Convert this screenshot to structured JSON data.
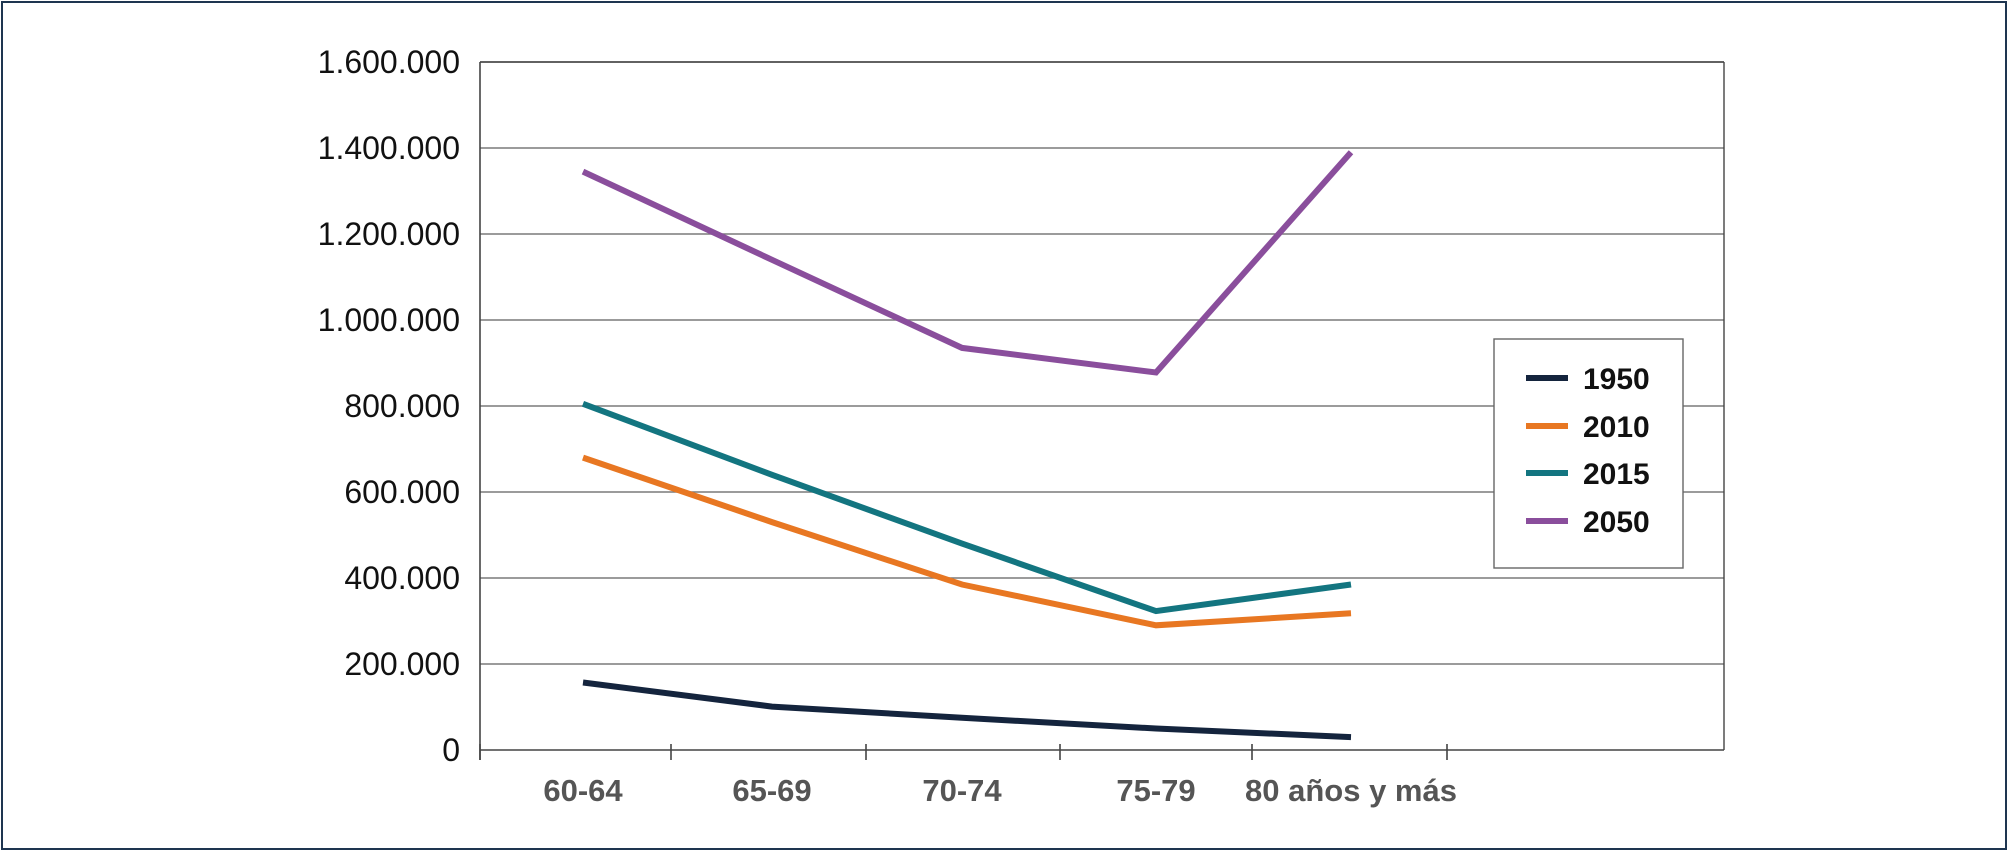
{
  "chart_data": {
    "type": "line",
    "title": "",
    "xlabel": "",
    "ylabel": "",
    "categories": [
      "60-64",
      "65-69",
      "70-74",
      "75-79",
      "80 años y más"
    ],
    "ylim": [
      0,
      1600000
    ],
    "y_ticks": [
      0,
      200000,
      400000,
      600000,
      800000,
      1000000,
      1200000,
      1400000,
      1600000
    ],
    "y_tick_labels": [
      "0",
      "200.000",
      "400.000",
      "600.000",
      "800.000",
      "1.000.000",
      "1.200.000",
      "1.400.000",
      "1.600.000"
    ],
    "grid": "horizontal",
    "legend_position": "right",
    "series": [
      {
        "name": "1950",
        "color": "#14243d",
        "values": [
          157000,
          101000,
          75000,
          50000,
          30000
        ]
      },
      {
        "name": "2010",
        "color": "#e87722",
        "values": [
          680000,
          530000,
          385000,
          290000,
          318000
        ]
      },
      {
        "name": "2015",
        "color": "#137580",
        "values": [
          805000,
          640000,
          480000,
          323000,
          385000
        ]
      },
      {
        "name": "2050",
        "color": "#8a4e9c",
        "values": [
          1345000,
          1140000,
          935000,
          878000,
          1390000
        ]
      }
    ]
  }
}
